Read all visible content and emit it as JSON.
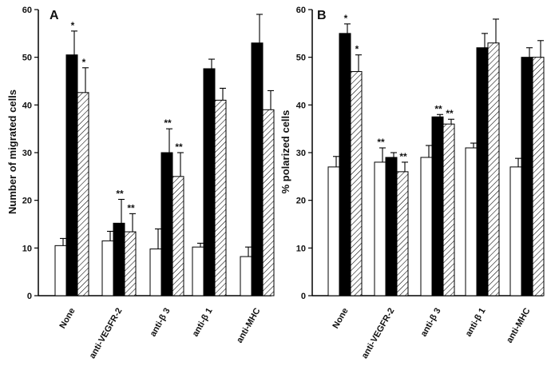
{
  "chart_data": [
    {
      "panel": "A",
      "type": "bar",
      "ylabel": "Number of migrated cells",
      "xlabel": "",
      "ylim": [
        0,
        60
      ],
      "yticks": [
        0,
        10,
        20,
        30,
        40,
        50,
        60
      ],
      "categories": [
        "None",
        "anti-VEGFR-2",
        "anti-β 3",
        "anti-β 1",
        "anti-MHC"
      ],
      "series": [
        {
          "name": "white",
          "fill": "#ffffff",
          "pattern": "none",
          "values": [
            10.5,
            11.5,
            9.8,
            10.2,
            8.2
          ],
          "errors": [
            1.5,
            2.0,
            4.2,
            0.8,
            2.0
          ],
          "marks": [
            "",
            "",
            "",
            "",
            ""
          ]
        },
        {
          "name": "black",
          "fill": "#000000",
          "pattern": "solid",
          "values": [
            50.5,
            15.2,
            30.0,
            47.6,
            53.0
          ],
          "errors": [
            5.0,
            5.0,
            5.0,
            2.0,
            6.0
          ],
          "marks": [
            "*",
            "**",
            "**",
            "",
            ""
          ]
        },
        {
          "name": "hatched",
          "fill": "#ffffff",
          "pattern": "hatch",
          "values": [
            42.6,
            13.4,
            25.0,
            41.0,
            39.0
          ],
          "errors": [
            5.2,
            3.8,
            5.0,
            2.5,
            4.0
          ],
          "marks": [
            "*",
            "**",
            "**",
            "",
            ""
          ]
        }
      ]
    },
    {
      "panel": "B",
      "type": "bar",
      "ylabel": "% polarized cells",
      "xlabel": "",
      "ylim": [
        0,
        60
      ],
      "yticks": [
        0,
        10,
        20,
        30,
        40,
        50,
        60
      ],
      "categories": [
        "None",
        "anti-VEGFR-2",
        "anti-β 3",
        "anti-β 1",
        "anti-MHC"
      ],
      "series": [
        {
          "name": "white",
          "fill": "#ffffff",
          "pattern": "none",
          "values": [
            27.0,
            28.0,
            29.0,
            31.0,
            27.0
          ],
          "errors": [
            2.2,
            3.0,
            2.5,
            1.0,
            1.8
          ],
          "marks": [
            "",
            "**",
            "",
            "",
            ""
          ]
        },
        {
          "name": "black",
          "fill": "#000000",
          "pattern": "solid",
          "values": [
            55.0,
            29.0,
            37.5,
            52.0,
            50.0
          ],
          "errors": [
            2.0,
            1.0,
            0.5,
            3.0,
            2.0
          ],
          "marks": [
            "*",
            "",
            "**",
            "",
            ""
          ]
        },
        {
          "name": "hatched",
          "fill": "#ffffff",
          "pattern": "hatch",
          "values": [
            47.0,
            26.0,
            36.0,
            53.0,
            50.0
          ],
          "errors": [
            3.5,
            2.0,
            1.0,
            5.0,
            3.5
          ],
          "marks": [
            "*",
            "**",
            "**",
            "",
            ""
          ]
        }
      ]
    }
  ]
}
